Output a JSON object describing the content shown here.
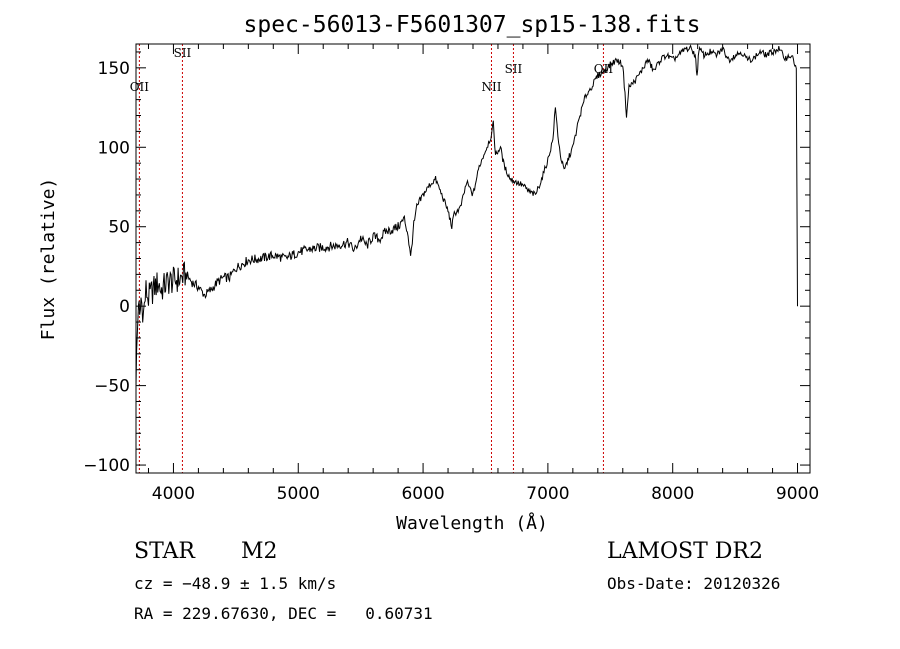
{
  "chart_data": {
    "type": "line",
    "title": "spec-56013-F5601307_sp15-138.fits",
    "xlabel": "Wavelength (Å)",
    "ylabel": "Flux (relative)",
    "xlim": [
      3700,
      9100
    ],
    "ylim": [
      -105,
      165
    ],
    "x_ticks": [
      4000,
      5000,
      6000,
      7000,
      8000,
      9000
    ],
    "y_ticks": [
      -100,
      -50,
      0,
      50,
      100,
      150
    ],
    "grid": false,
    "line_color": "#000000",
    "marker_color": "#cc0000",
    "series": [
      {
        "x": [
          3700,
          3710,
          3720,
          3730,
          3740,
          3760,
          3780,
          3800,
          3820,
          3850,
          3880,
          3900,
          3950,
          4000,
          4050,
          4100,
          4150,
          4200,
          4250,
          4300,
          4350,
          4400,
          4450,
          4500,
          4600,
          4700,
          4800,
          4900,
          5000,
          5100,
          5200,
          5300,
          5400,
          5450,
          5500,
          5550,
          5600,
          5650,
          5700,
          5750,
          5800,
          5850,
          5880,
          5900,
          5920,
          5950,
          6000,
          6050,
          6100,
          6150,
          6200,
          6230,
          6250,
          6300,
          6350,
          6400,
          6450,
          6500,
          6550,
          6563,
          6580,
          6620,
          6650,
          6700,
          6750,
          6800,
          6850,
          6900,
          6950,
          7000,
          7040,
          7060,
          7080,
          7100,
          7130,
          7160,
          7200,
          7250,
          7300,
          7350,
          7400,
          7450,
          7500,
          7550,
          7600,
          7630,
          7650,
          7700,
          7750,
          7800,
          7850,
          7900,
          7950,
          8000,
          8050,
          8100,
          8150,
          8180,
          8195,
          8210,
          8250,
          8300,
          8350,
          8400,
          8450,
          8500,
          8550,
          8600,
          8650,
          8700,
          8750,
          8800,
          8850,
          8900,
          8950,
          8990,
          9000
        ],
        "y": [
          -45,
          -20,
          5,
          -10,
          5,
          -5,
          10,
          5,
          8,
          12,
          15,
          10,
          15,
          16,
          17,
          20,
          15,
          12,
          7,
          10,
          15,
          18,
          18,
          24,
          29,
          30,
          32,
          30,
          34,
          36,
          37,
          38,
          40,
          35,
          43,
          38,
          44,
          42,
          47,
          48,
          50,
          55,
          45,
          30,
          48,
          62,
          70,
          76,
          80,
          70,
          60,
          50,
          58,
          62,
          78,
          70,
          88,
          98,
          108,
          115,
          95,
          100,
          88,
          80,
          78,
          76,
          72,
          70,
          80,
          92,
          105,
          125,
          108,
          95,
          85,
          92,
          100,
          118,
          132,
          138,
          145,
          148,
          152,
          155,
          152,
          120,
          138,
          142,
          148,
          155,
          148,
          155,
          158,
          155,
          158,
          162,
          162,
          158,
          145,
          162,
          158,
          160,
          158,
          162,
          155,
          158,
          160,
          155,
          156,
          160,
          158,
          160,
          162,
          156,
          158,
          150,
          0
        ]
      }
    ],
    "line_markers": [
      {
        "label": "OII",
        "x": 3727
      },
      {
        "label": "SII",
        "x": 4072
      },
      {
        "label": "NII",
        "x": 6548
      },
      {
        "label": "SII",
        "x": 6724
      },
      {
        "label": "OII",
        "x": 7445
      }
    ]
  },
  "info": {
    "object_class": "STAR",
    "subclass": "M2",
    "cz": "cz = −48.9 ± 1.5 km/s",
    "coords": "RA = 229.67630, DEC =   0.60731",
    "survey": "LAMOST DR2",
    "obs_date": "Obs-Date: 20120326"
  }
}
